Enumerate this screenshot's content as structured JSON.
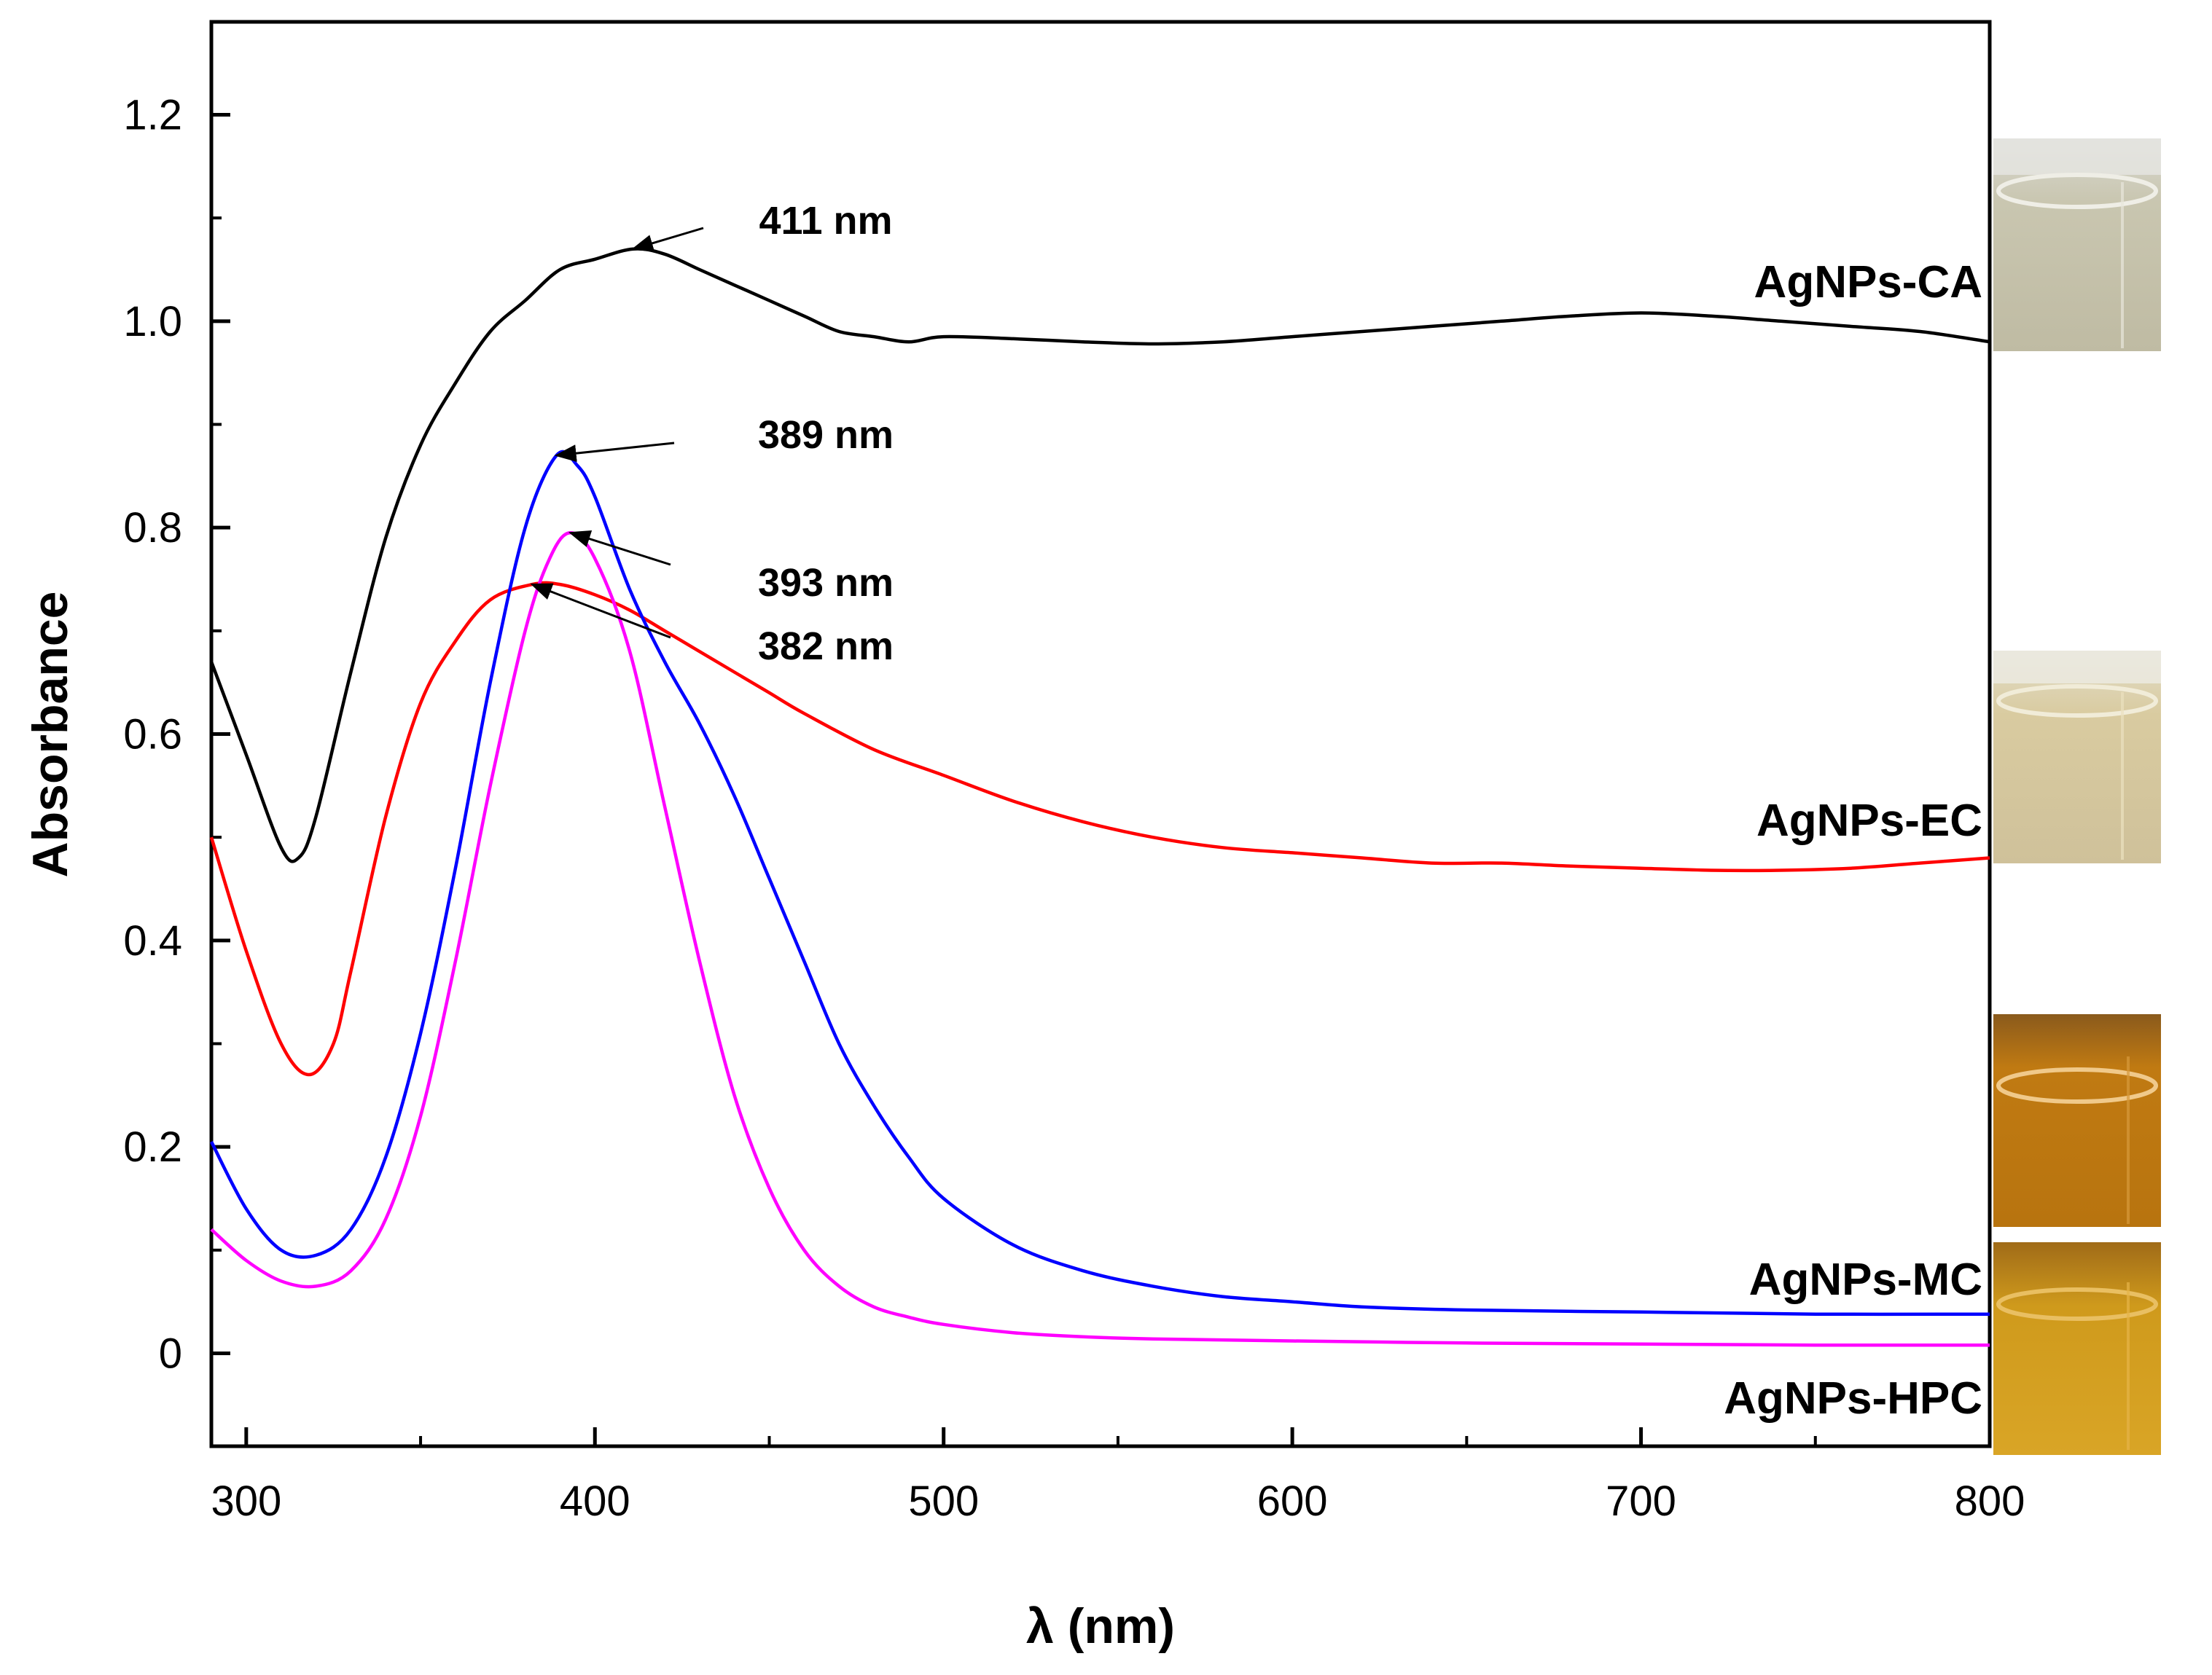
{
  "chart_data": {
    "type": "line",
    "title": "",
    "xlabel": "λ (nm)",
    "ylabel": "Absorbance",
    "xlim": [
      290,
      800
    ],
    "ylim": [
      -0.09,
      1.29
    ],
    "x_ticks": [
      300,
      400,
      500,
      600,
      700,
      800
    ],
    "x_tick_labels": [
      "300",
      "400",
      "500",
      "600",
      "700",
      "800"
    ],
    "y_ticks": [
      0,
      0.2,
      0.4,
      0.6,
      0.8,
      1.0,
      1.2
    ],
    "y_tick_labels": [
      "0",
      "0.2",
      "0.4",
      "0.6",
      "0.8",
      "1.0",
      "1.2"
    ],
    "grid": false,
    "series": [
      {
        "name": "AgNPs-CA",
        "label": "AgNPs-CA",
        "color": "#000000",
        "x": [
          290,
          300,
          310,
          315,
          320,
          330,
          340,
          350,
          360,
          370,
          380,
          390,
          400,
          411,
          420,
          430,
          440,
          450,
          460,
          470,
          480,
          490,
          500,
          520,
          540,
          560,
          580,
          600,
          620,
          640,
          660,
          680,
          700,
          720,
          740,
          760,
          780,
          800
        ],
        "y": [
          0.67,
          0.58,
          0.49,
          0.48,
          0.52,
          0.66,
          0.79,
          0.88,
          0.94,
          0.99,
          1.02,
          1.05,
          1.06,
          1.07,
          1.065,
          1.05,
          1.035,
          1.02,
          1.005,
          0.99,
          0.985,
          0.98,
          0.985,
          0.983,
          0.98,
          0.978,
          0.98,
          0.985,
          0.99,
          0.995,
          1.0,
          1.005,
          1.008,
          1.005,
          1.0,
          0.995,
          0.99,
          0.98
        ]
      },
      {
        "name": "AgNPs-EC",
        "label": "AgNPs-EC",
        "color": "#ff0000",
        "x": [
          290,
          300,
          310,
          318,
          325,
          330,
          340,
          350,
          360,
          370,
          382,
          390,
          400,
          410,
          420,
          430,
          440,
          450,
          460,
          480,
          500,
          520,
          540,
          560,
          580,
          600,
          620,
          640,
          660,
          680,
          700,
          720,
          740,
          760,
          780,
          800
        ],
        "y": [
          0.5,
          0.39,
          0.3,
          0.27,
          0.3,
          0.37,
          0.52,
          0.63,
          0.69,
          0.73,
          0.745,
          0.745,
          0.735,
          0.72,
          0.7,
          0.68,
          0.66,
          0.64,
          0.62,
          0.585,
          0.56,
          0.535,
          0.515,
          0.5,
          0.49,
          0.485,
          0.48,
          0.475,
          0.475,
          0.472,
          0.47,
          0.468,
          0.468,
          0.47,
          0.475,
          0.48
        ]
      },
      {
        "name": "AgNPs-MC",
        "label": "AgNPs-MC",
        "color": "#0000ff",
        "x": [
          290,
          300,
          310,
          320,
          330,
          340,
          350,
          360,
          370,
          380,
          389,
          395,
          400,
          410,
          420,
          430,
          440,
          450,
          460,
          470,
          480,
          490,
          500,
          520,
          540,
          560,
          580,
          600,
          620,
          650,
          700,
          750,
          800
        ],
        "y": [
          0.205,
          0.14,
          0.1,
          0.095,
          0.12,
          0.19,
          0.31,
          0.47,
          0.65,
          0.8,
          0.87,
          0.86,
          0.83,
          0.74,
          0.67,
          0.61,
          0.54,
          0.46,
          0.38,
          0.3,
          0.24,
          0.19,
          0.15,
          0.105,
          0.08,
          0.065,
          0.055,
          0.05,
          0.045,
          0.042,
          0.04,
          0.038,
          0.038
        ]
      },
      {
        "name": "AgNPs-HPC",
        "label": "AgNPs-HPC",
        "color": "#ff00ff",
        "x": [
          290,
          300,
          310,
          320,
          330,
          340,
          350,
          360,
          370,
          380,
          387,
          393,
          400,
          410,
          420,
          430,
          440,
          450,
          460,
          470,
          480,
          490,
          500,
          520,
          540,
          560,
          600,
          650,
          700,
          750,
          800
        ],
        "y": [
          0.12,
          0.09,
          0.07,
          0.065,
          0.08,
          0.13,
          0.23,
          0.38,
          0.55,
          0.7,
          0.77,
          0.795,
          0.77,
          0.68,
          0.53,
          0.38,
          0.25,
          0.16,
          0.1,
          0.065,
          0.045,
          0.035,
          0.028,
          0.02,
          0.016,
          0.014,
          0.012,
          0.01,
          0.009,
          0.008,
          0.008
        ]
      }
    ],
    "annotations": [
      {
        "text": "411 nm",
        "x": 411,
        "y": 1.07
      },
      {
        "text": "389 nm",
        "x": 389,
        "y": 0.87
      },
      {
        "text": "393 nm",
        "x": 393,
        "y": 0.795
      },
      {
        "text": "382 nm",
        "x": 382,
        "y": 0.745
      }
    ]
  }
}
